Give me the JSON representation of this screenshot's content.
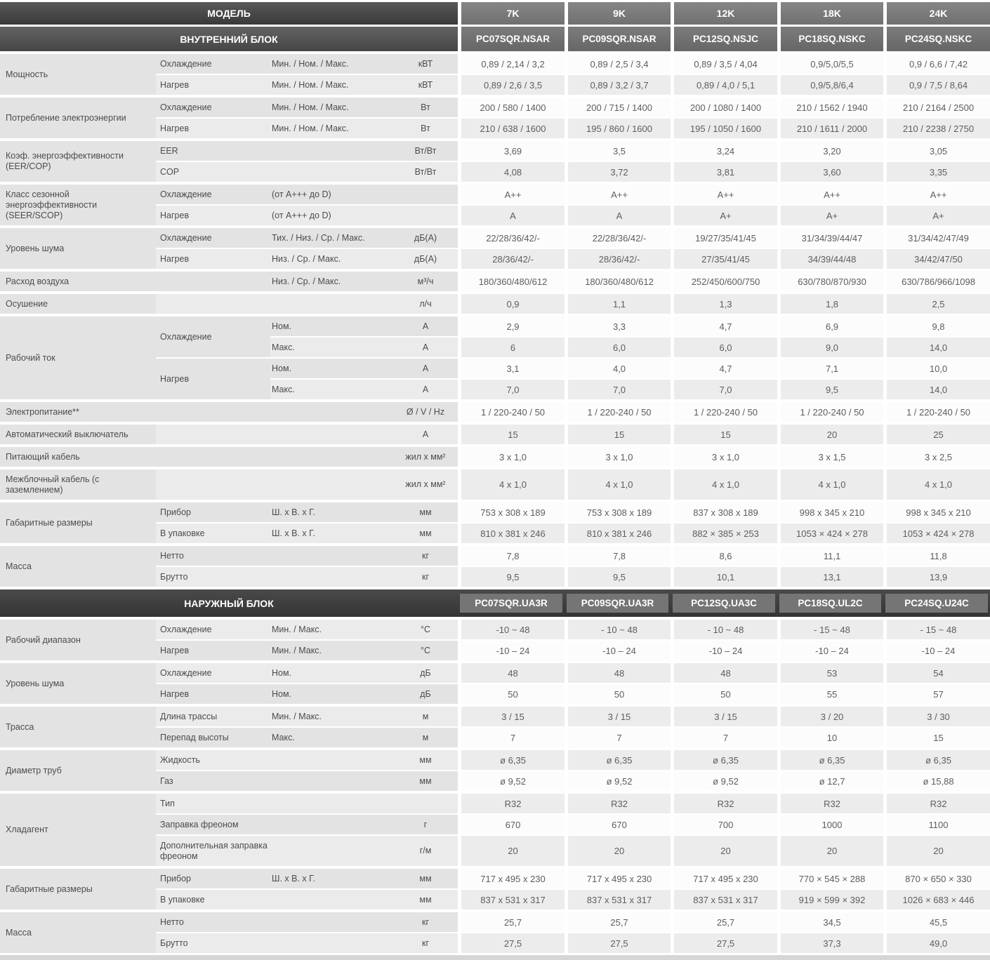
{
  "colors": {
    "header_dark": "#3a3a3a",
    "header_cell": "#787878",
    "model_cell": "#6f6f6f",
    "section_band": "#3f3f3f",
    "section_model_cell": "#757575",
    "row_light": "#fcfcfc",
    "row_dark": "#ececec",
    "left_light": "#e3e3e3",
    "left_dark": "#ebebeb",
    "bottom_bar": "#d6d6d6"
  },
  "header": {
    "model_label": "МОДЕЛЬ",
    "sizes": [
      "7K",
      "9K",
      "12K",
      "18K",
      "24K"
    ]
  },
  "sections": [
    {
      "title": "ВНУТРЕННИЙ БЛОК",
      "models": [
        "PC07SQR.NSAR",
        "PC09SQR.NSAR",
        "PC12SQ.NSJC",
        "PC18SQ.NSKC",
        "PC24SQ.NSKC"
      ],
      "groups": [
        {
          "name": "Мощность",
          "rows": [
            {
              "sub": "Охлаждение",
              "qual": "Мин. / Ном. / Макс.",
              "unit": "кВТ",
              "values": [
                "0,89 / 2,14 / 3,2",
                "0,89 / 2,5 / 3,4",
                "0,89 / 3,5 / 4,04",
                "0,9/5,0/5,5",
                "0,9 / 6,6 / 7,42"
              ]
            },
            {
              "sub": "Нагрев",
              "qual": "Мин. / Ном. / Макс.",
              "unit": "кВТ",
              "values": [
                "0,89 / 2,6 / 3,5",
                "0,89 / 3,2 / 3,7",
                "0,89 / 4,0 / 5,1",
                "0,9/5,8/6,4",
                "0,9 / 7,5 / 8,64"
              ]
            }
          ]
        },
        {
          "name": "Потребление электроэнергии",
          "rows": [
            {
              "sub": "Охлаждение",
              "qual": "Мин. / Ном. / Макс.",
              "unit": "Вт",
              "values": [
                "200 / 580 / 1400",
                "200 / 715 / 1400",
                "200 / 1080 / 1400",
                "210 / 1562 / 1940",
                "210 / 2164 / 2500"
              ]
            },
            {
              "sub": "Нагрев",
              "qual": "Мин. / Ном. / Макс.",
              "unit": "Вт",
              "values": [
                "210 / 638 / 1600",
                "195 / 860 / 1600",
                "195 / 1050 / 1600",
                "210 / 1611 / 2000",
                "210 / 2238 / 2750"
              ]
            }
          ]
        },
        {
          "name": "Коэф. энергоэффективности (EER/COP)",
          "rows": [
            {
              "sub": "EER",
              "qual": "",
              "unit": "Вт/Вт",
              "values": [
                "3,69",
                "3,5",
                "3,24",
                "3,20",
                "3,05"
              ]
            },
            {
              "sub": "COP",
              "qual": "",
              "unit": "Вт/Вт",
              "values": [
                "4,08",
                "3,72",
                "3,81",
                "3,60",
                "3,35"
              ]
            }
          ]
        },
        {
          "name": "Класс сезонной энергоэффективности (SEER/SCOP)",
          "rows": [
            {
              "sub": "Охлаждение",
              "qual": "(от А+++ до D)",
              "unit": "",
              "values": [
                "A++",
                "A++",
                "A++",
                "A++",
                "A++"
              ]
            },
            {
              "sub": "Нагрев",
              "qual": "(от А+++ до D)",
              "unit": "",
              "values": [
                "A",
                "A",
                "A+",
                "A+",
                "A+"
              ]
            }
          ]
        },
        {
          "name": "Уровень шума",
          "rows": [
            {
              "sub": "Охлаждение",
              "qual": "Тих. / Низ. / Ср. / Макс.",
              "unit": "дБ(А)",
              "values": [
                "22/28/36/42/-",
                "22/28/36/42/-",
                "19/27/35/41/45",
                "31/34/39/44/47",
                "31/34/42/47/49"
              ]
            },
            {
              "sub": "Нагрев",
              "qual": "Низ. / Ср. / Макс.",
              "unit": "дБ(А)",
              "values": [
                "28/36/42/-",
                "28/36/42/-",
                "27/35/41/45",
                "34/39/44/48",
                "34/42/47/50"
              ]
            }
          ]
        },
        {
          "name": "Расход воздуха",
          "rows": [
            {
              "sub": "",
              "qual": "Низ. / Ср. / Макс.",
              "unit": "м³/ч",
              "values": [
                "180/360/480/612",
                "180/360/480/612",
                "252/450/600/750",
                "630/780/870/930",
                "630/786/966/1098"
              ]
            }
          ]
        },
        {
          "name": "Осушение",
          "rows": [
            {
              "sub": "",
              "qual": "",
              "unit": "л/ч",
              "values": [
                "0,9",
                "1,1",
                "1,3",
                "1,8",
                "2,5"
              ]
            }
          ]
        },
        {
          "name": "Рабочий ток",
          "rows": [
            {
              "sub": "Охлаждение",
              "sub_span": 2,
              "qual": "Ном.",
              "unit": "А",
              "values": [
                "2,9",
                "3,3",
                "4,7",
                "6,9",
                "9,8"
              ]
            },
            {
              "sub": null,
              "qual": "Макс.",
              "unit": "А",
              "values": [
                "6",
                "6,0",
                "6,0",
                "9,0",
                "14,0"
              ]
            },
            {
              "sub": "Нагрев",
              "sub_span": 2,
              "qual": "Ном.",
              "unit": "А",
              "values": [
                "3,1",
                "4,0",
                "4,7",
                "7,1",
                "10,0"
              ]
            },
            {
              "sub": null,
              "qual": "Макс.",
              "unit": "А",
              "values": [
                "7,0",
                "7,0",
                "7,0",
                "9,5",
                "14,0"
              ]
            }
          ]
        },
        {
          "name": "Электропитание**",
          "rows": [
            {
              "sub": "",
              "qual": "",
              "unit": "Ø / V / Hz",
              "values": [
                "1 / 220-240 / 50",
                "1 / 220-240 / 50",
                "1 / 220-240 / 50",
                "1 / 220-240 / 50",
                "1 / 220-240 / 50"
              ]
            }
          ]
        },
        {
          "name": "Автоматический выключатель",
          "rows": [
            {
              "sub": "",
              "qual": "",
              "unit": "А",
              "values": [
                "15",
                "15",
                "15",
                "20",
                "25"
              ]
            }
          ]
        },
        {
          "name": "Питающий кабель",
          "rows": [
            {
              "sub": "",
              "qual": "",
              "unit": "жил х мм²",
              "values": [
                "3 х 1,0",
                "3 х 1,0",
                "3 х 1,0",
                "3 х 1,5",
                "3 х 2,5"
              ]
            }
          ]
        },
        {
          "name": "Межблочный кабель (с заземлением)",
          "rows": [
            {
              "sub": "",
              "qual": "",
              "unit": "жил х мм²",
              "values": [
                "4 х 1,0",
                "4 х 1,0",
                "4 х 1,0",
                "4 х 1,0",
                "4 х 1,0"
              ]
            }
          ]
        },
        {
          "name": "Габаритные размеры",
          "rows": [
            {
              "sub": "Прибор",
              "qual": "Ш. х В. х Г.",
              "unit": "мм",
              "values": [
                "753 x 308 x 189",
                "753 x 308 x 189",
                "837 x 308 x 189",
                "998 x 345 x 210",
                "998 x 345 x 210"
              ]
            },
            {
              "sub": "В упаковке",
              "qual": "Ш. х В. х Г.",
              "unit": "мм",
              "values": [
                "810 x 381 x 246",
                "810 x 381 x 246",
                "882 × 385 × 253",
                "1053 × 424 × 278",
                "1053 × 424 × 278"
              ]
            }
          ]
        },
        {
          "name": "Масса",
          "rows": [
            {
              "sub": "Нетто",
              "qual": "",
              "unit": "кг",
              "values": [
                "7,8",
                "7,8",
                "8,6",
                "11,1",
                "11,8"
              ]
            },
            {
              "sub": "Брутто",
              "qual": "",
              "unit": "кг",
              "values": [
                "9,5",
                "9,5",
                "10,1",
                "13,1",
                "13,9"
              ]
            }
          ]
        }
      ]
    },
    {
      "title": "НАРУЖНЫЙ БЛОК",
      "models": [
        "PC07SQR.UA3R",
        "PC09SQR.UA3R",
        "PC12SQ.UA3C",
        "PC18SQ.UL2C",
        "PC24SQ.U24C"
      ],
      "groups": [
        {
          "name": "Рабочий диапазон",
          "rows": [
            {
              "sub": "Охлаждение",
              "qual": "Мин. / Макс.",
              "unit": "°С",
              "values": [
                "-10 ~ 48",
                "- 10 ~ 48",
                "- 10 ~ 48",
                "- 15 ~ 48",
                "- 15 ~ 48"
              ]
            },
            {
              "sub": "Нагрев",
              "qual": "Мин. / Макс.",
              "unit": "°С",
              "values": [
                "-10 – 24",
                "-10 – 24",
                "-10 – 24",
                "-10 – 24",
                "-10 – 24"
              ]
            }
          ]
        },
        {
          "name": "Уровень шума",
          "rows": [
            {
              "sub": "Охлаждение",
              "qual": "Ном.",
              "unit": "дБ",
              "values": [
                "48",
                "48",
                "48",
                "53",
                "54"
              ]
            },
            {
              "sub": "Нагрев",
              "qual": "Ном.",
              "unit": "дБ",
              "values": [
                "50",
                "50",
                "50",
                "55",
                "57"
              ]
            }
          ]
        },
        {
          "name": "Трасса",
          "rows": [
            {
              "sub": "Длина трассы",
              "qual": "Мин. / Макс.",
              "unit": "м",
              "values": [
                "3 / 15",
                "3 / 15",
                "3 / 15",
                "3 / 20",
                "3 / 30"
              ]
            },
            {
              "sub": "Перепад высоты",
              "qual": "Макс.",
              "unit": "м",
              "values": [
                "7",
                "7",
                "7",
                "10",
                "15"
              ]
            }
          ]
        },
        {
          "name": "Диаметр труб",
          "rows": [
            {
              "sub": "Жидкость",
              "qual": "",
              "unit": "мм",
              "values": [
                "ø 6,35",
                "ø 6,35",
                "ø 6,35",
                "ø 6,35",
                "ø 6,35"
              ]
            },
            {
              "sub": "Газ",
              "qual": "",
              "unit": "мм",
              "values": [
                "ø 9,52",
                "ø 9,52",
                "ø 9,52",
                "ø 12,7",
                "ø 15,88"
              ]
            }
          ]
        },
        {
          "name": "Хладагент",
          "rows": [
            {
              "sub": "Тип",
              "qual": "",
              "unit": "",
              "values": [
                "R32",
                "R32",
                "R32",
                "R32",
                "R32"
              ]
            },
            {
              "sub": "Заправка фреоном",
              "qual": "",
              "unit": "г",
              "values": [
                "670",
                "670",
                "700",
                "1000",
                "1100"
              ]
            },
            {
              "sub": "Дополнительная заправка фреоном",
              "qual": "",
              "unit": "г/м",
              "values": [
                "20",
                "20",
                "20",
                "20",
                "20"
              ]
            }
          ]
        },
        {
          "name": "Габаритные размеры",
          "rows": [
            {
              "sub": "Прибор",
              "qual": "Ш. х В. х Г.",
              "unit": "мм",
              "values": [
                "717 x 495 x 230",
                "717 x 495 x 230",
                "717 x 495 x 230",
                "770 × 545 × 288",
                "870 × 650 × 330"
              ]
            },
            {
              "sub": "В упаковке",
              "qual": "",
              "unit": "мм",
              "values": [
                "837 x 531 x 317",
                "837 x 531 x 317",
                "837 x 531 x 317",
                "919 × 599 × 392",
                "1026 × 683 × 446"
              ]
            }
          ]
        },
        {
          "name": "Масса",
          "rows": [
            {
              "sub": "Нетто",
              "qual": "",
              "unit": "кг",
              "values": [
                "25,7",
                "25,7",
                "25,7",
                "34,5",
                "45,5"
              ]
            },
            {
              "sub": "Брутто",
              "qual": "",
              "unit": "кг",
              "values": [
                "27,5",
                "27,5",
                "27,5",
                "37,3",
                "49,0"
              ]
            }
          ]
        }
      ]
    }
  ]
}
